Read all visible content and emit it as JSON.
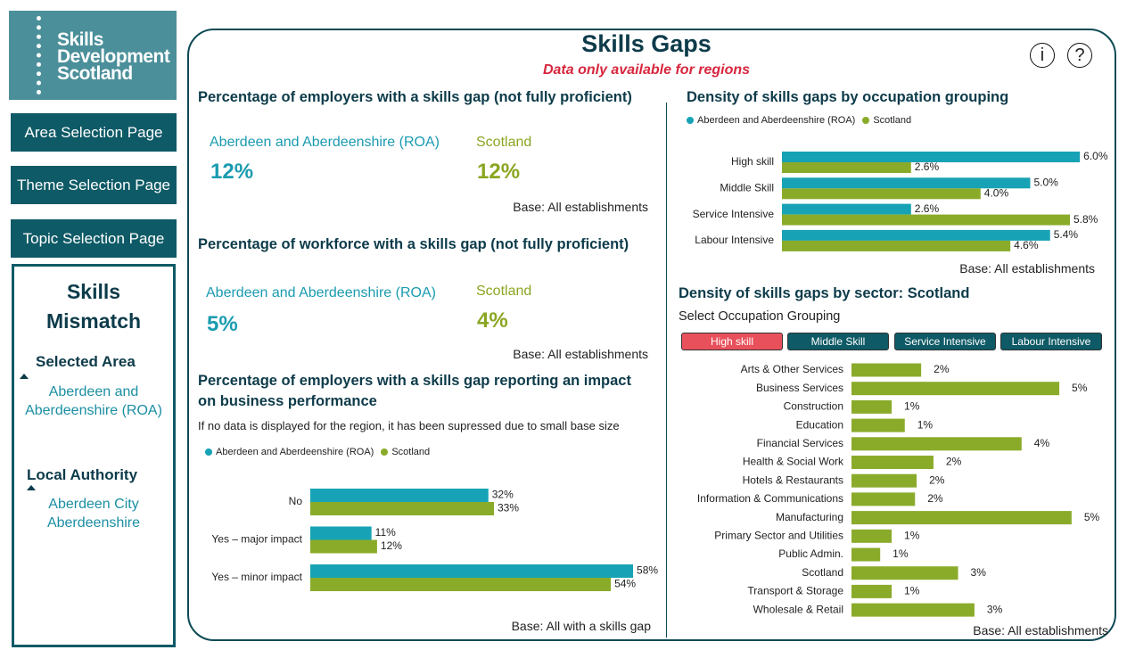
{
  "sidebar": {
    "logo": [
      "Skills",
      "Development",
      "Scotland"
    ],
    "nav": [
      "Area Selection Page",
      "Theme Selection Page",
      "Topic Selection Page"
    ],
    "panel": {
      "title": "Skills Mismatch",
      "selected_area_label": "Selected Area",
      "selected_area": "Aberdeen and Aberdeenshire (ROA)",
      "local_authority_label": "Local Authority",
      "local_authorities": [
        "Aberdeen City",
        "Aberdeenshire"
      ]
    }
  },
  "header": {
    "title": "Skills Gaps",
    "subtitle": "Data only available for regions",
    "info_icon": "i",
    "help_icon": "?"
  },
  "employers_kpi": {
    "title": "Percentage of employers with a skills gap (not fully proficient)",
    "items": [
      {
        "name": "Aberdeen and Aberdeenshire (ROA)",
        "value": "12%"
      },
      {
        "name": "Scotland",
        "value": "12%"
      }
    ],
    "base": "Base: All establishments"
  },
  "workforce_kpi": {
    "title": "Percentage of workforce with a skills gap (not fully proficient)",
    "items": [
      {
        "name": "Aberdeen and Aberdeenshire (ROA)",
        "value": "5%"
      },
      {
        "name": "Scotland",
        "value": "4%"
      }
    ],
    "base": "Base: All establishments"
  },
  "chart_data": [
    {
      "type": "bar",
      "orientation": "horizontal",
      "title": "Percentage of employers with a skills gap reporting an impact on business performance",
      "note": "If no data is displayed for the region, it has been supressed due to small base size",
      "categories": [
        "No",
        "Yes – major impact",
        "Yes – minor impact"
      ],
      "series": [
        {
          "name": "Aberdeen and Aberdeenshire (ROA)",
          "color": "#17a3b5",
          "values": [
            32,
            11,
            58
          ],
          "value_labels": [
            "32%",
            "11%",
            "58%"
          ]
        },
        {
          "name": "Scotland",
          "color": "#8aab2a",
          "values": [
            33,
            12,
            54
          ],
          "value_labels": [
            "33%",
            "12%",
            "54%"
          ]
        }
      ],
      "xlim": [
        0,
        62
      ],
      "base": "Base: All with a skills gap"
    },
    {
      "type": "bar",
      "orientation": "horizontal",
      "title": "Density of skills gaps by occupation grouping",
      "categories": [
        "High skill",
        "Middle Skill",
        "Service Intensive",
        "Labour Intensive"
      ],
      "series": [
        {
          "name": "Aberdeen and Aberdeenshire (ROA)",
          "color": "#17a3b5",
          "values": [
            6.0,
            5.0,
            2.6,
            5.4
          ],
          "value_labels": [
            "6.0%",
            "5.0%",
            "2.6%",
            "5.4%"
          ]
        },
        {
          "name": "Scotland",
          "color": "#8aab2a",
          "values": [
            2.6,
            4.0,
            5.8,
            4.6
          ],
          "value_labels": [
            "2.6%",
            "4.0%",
            "5.8%",
            "4.6%"
          ]
        }
      ],
      "xlim": [
        0,
        6.5
      ],
      "base": "Base: All establishments"
    },
    {
      "type": "bar",
      "orientation": "horizontal",
      "title": "Density of skills gaps by sector: Scotland",
      "selector_label": "Select Occupation Grouping",
      "buttons": [
        "High skill",
        "Middle Skill",
        "Service Intensive",
        "Labour Intensive"
      ],
      "selected_button": 0,
      "categories": [
        "Arts & Other Services",
        "Business Services",
        "Construction",
        "Education",
        "Financial Services",
        "Health & Social Work",
        "Hotels & Restaurants",
        "Information & Communications",
        "Manufacturing",
        "Primary Sector and Utilities",
        "Public Admin.",
        "Scotland",
        "Transport & Storage",
        "Wholesale & Retail"
      ],
      "values": [
        1.7,
        5.07,
        0.98,
        1.3,
        4.15,
        2.0,
        1.59,
        1.55,
        5.37,
        0.98,
        0.7,
        2.6,
        0.98,
        3.0
      ],
      "value_labels": [
        "2%",
        "5%",
        "1%",
        "1%",
        "4%",
        "2%",
        "2%",
        "2%",
        "5%",
        "1%",
        "1%",
        "3%",
        "1%",
        "3%"
      ],
      "color": "#8aab2a",
      "xlim": [
        0,
        6.2
      ],
      "base": "Base: All establishments"
    }
  ]
}
